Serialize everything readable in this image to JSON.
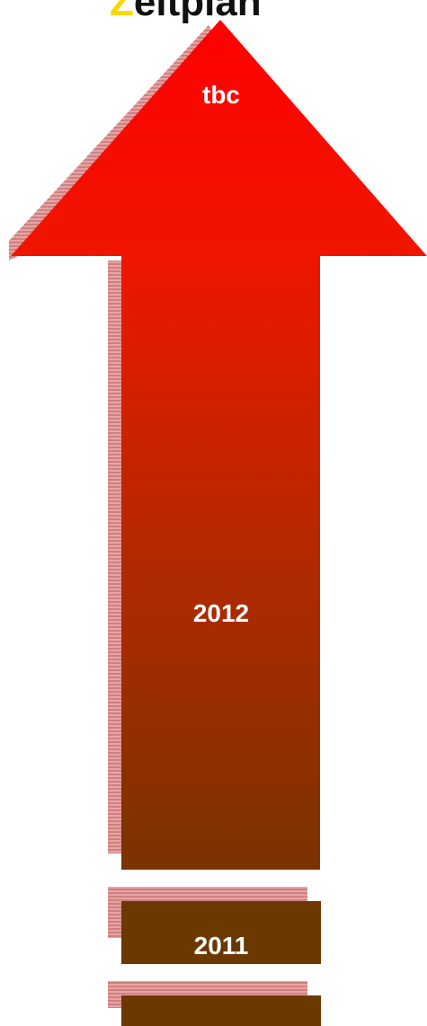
{
  "header": {
    "title_accent": "Z",
    "title_text": "eitplan"
  },
  "arrow": {
    "label_top": "tbc",
    "label_middle": "2012"
  },
  "blocks": {
    "block_2011_label": "2011"
  },
  "colors": {
    "arrow_top": "#ff0000",
    "arrow_bottom": "#7a3300",
    "block_fill": "#6b3800",
    "shadow": "#d88a8a",
    "title_accent": "#ffd700"
  }
}
